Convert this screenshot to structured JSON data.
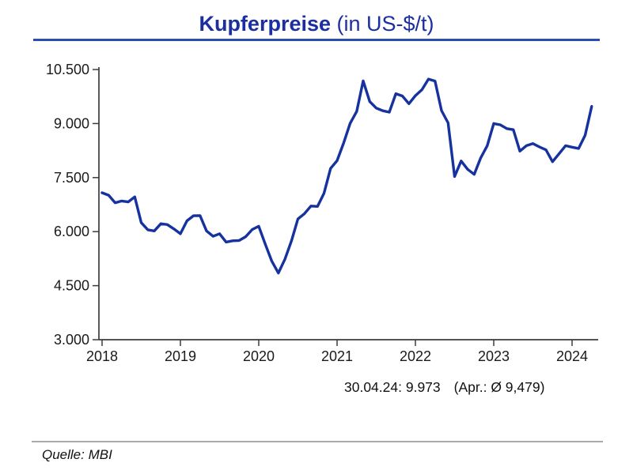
{
  "header": {
    "title_bold": "Kupferpreise",
    "title_rest": " (in US-$/t)"
  },
  "annotation": {
    "latest": "30.04.24: 9.973",
    "monthly_avg": "(Apr.: Ø 9,479)"
  },
  "footer": {
    "source": "Quelle: MBI"
  },
  "colors": {
    "line": "#16329E",
    "title": "#1B2FA0",
    "title_rule": "#2B4CB3",
    "axis": "#3C3C3C",
    "footer_rule": "#A9A9A9"
  },
  "chart_data": {
    "type": "line",
    "title": "Kupferpreise (in US-$/t)",
    "xlabel": "",
    "ylabel": "US-$/t",
    "ylim": [
      3000,
      10500
    ],
    "yticks": [
      3000,
      4500,
      6000,
      7500,
      9000,
      10500
    ],
    "ytick_labels": [
      "3.000",
      "4.500",
      "6.000",
      "7.500",
      "9.000",
      "10.500"
    ],
    "xtick_labels": [
      "2018",
      "2019",
      "2020",
      "2021",
      "2022",
      "2023",
      "2024"
    ],
    "grid": false,
    "legend_position": "none",
    "series": [
      {
        "name": "Kupferpreis (US-$/t)",
        "start": "2018-01",
        "end": "2024-04",
        "interval": "monthly",
        "values": [
          7080,
          7010,
          6800,
          6850,
          6825,
          6965,
          6250,
          6050,
          6020,
          6220,
          6195,
          6075,
          5940,
          6300,
          6440,
          6445,
          6020,
          5870,
          5940,
          5710,
          5745,
          5755,
          5860,
          6060,
          6150,
          5650,
          5180,
          4850,
          5230,
          5740,
          6350,
          6500,
          6710,
          6700,
          7065,
          7755,
          7970,
          8460,
          9005,
          9335,
          10185,
          9610,
          9430,
          9355,
          9315,
          9830,
          9765,
          9550,
          9775,
          9940,
          10235,
          10180,
          9360,
          9020,
          7530,
          7960,
          7730,
          7590,
          8045,
          8385,
          9000,
          8965,
          8860,
          8830,
          8235,
          8385,
          8445,
          8350,
          8270,
          7940,
          8160,
          8385,
          8345,
          8310,
          8675,
          9479
        ]
      }
    ],
    "annotations": [
      "30.04.24: 9.973",
      "(Apr.: Ø 9,479)"
    ]
  }
}
